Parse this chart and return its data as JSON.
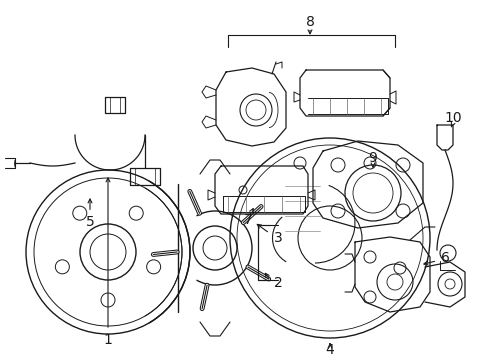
{
  "background_color": "#ffffff",
  "line_color": "#1a1a1a",
  "figsize": [
    4.89,
    3.6
  ],
  "dpi": 100,
  "font_size": 10,
  "lw": 0.9,
  "lw_thin": 0.6
}
